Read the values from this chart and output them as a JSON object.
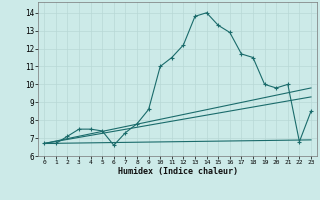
{
  "xlabel": "Humidex (Indice chaleur)",
  "xlim": [
    -0.5,
    23.5
  ],
  "ylim": [
    6.0,
    14.6
  ],
  "yticks": [
    6,
    7,
    8,
    9,
    10,
    11,
    12,
    13,
    14
  ],
  "xticks": [
    0,
    1,
    2,
    3,
    4,
    5,
    6,
    7,
    8,
    9,
    10,
    11,
    12,
    13,
    14,
    15,
    16,
    17,
    18,
    19,
    20,
    21,
    22,
    23
  ],
  "bg_color": "#cceae8",
  "grid_color": "#b8d8d6",
  "line_color": "#1a6b6b",
  "line1_x": [
    0,
    1,
    2,
    3,
    4,
    5,
    6,
    7,
    8,
    9,
    10,
    11,
    12,
    13,
    14,
    15,
    16,
    17,
    18,
    19,
    20,
    21,
    22,
    23
  ],
  "line1_y": [
    6.7,
    6.7,
    7.1,
    7.5,
    7.5,
    7.4,
    6.6,
    7.3,
    7.8,
    8.6,
    11.0,
    11.5,
    12.2,
    13.8,
    14.0,
    13.3,
    12.9,
    11.7,
    11.5,
    10.0,
    9.8,
    10.0,
    6.8,
    8.5
  ],
  "line2_x": [
    0,
    23
  ],
  "line2_y": [
    6.7,
    9.8
  ],
  "line3_x": [
    0,
    23
  ],
  "line3_y": [
    6.7,
    9.3
  ],
  "line4_x": [
    0,
    23
  ],
  "line4_y": [
    6.7,
    6.9
  ]
}
